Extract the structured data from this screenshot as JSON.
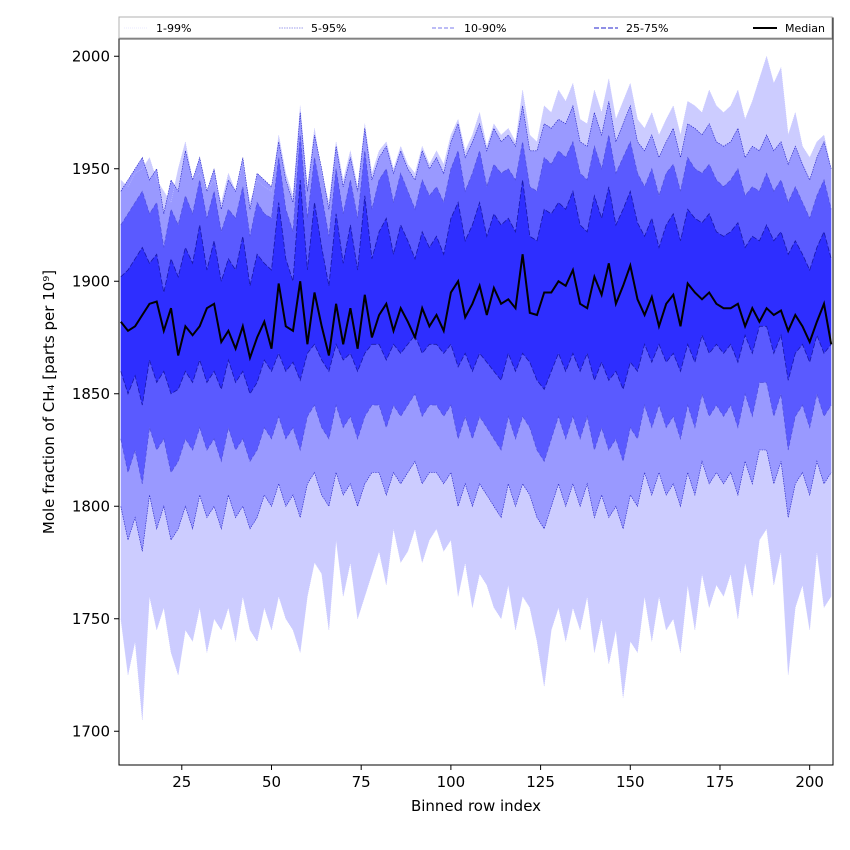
{
  "chart_data": {
    "type": "area",
    "title": "",
    "xlabel": "Binned row index",
    "ylabel": "Mole fraction of CH₄ [parts per 10⁹]",
    "xlim": [
      7.5,
      206.5
    ],
    "ylim": [
      1685,
      2017
    ],
    "xticks": [
      25,
      50,
      75,
      100,
      125,
      150,
      175,
      200
    ],
    "yticks": [
      1700,
      1750,
      1800,
      1850,
      1900,
      1950,
      2000
    ],
    "grid": false,
    "legend_position": "top",
    "legend": [
      {
        "label": "1-99%",
        "color": "#d4d4ff",
        "dash": "1,1",
        "width": 0.6
      },
      {
        "label": "5-95%",
        "color": "#3a3ad8",
        "dash": "1.5,1",
        "width": 0.6
      },
      {
        "label": "10-90%",
        "color": "#7878ee",
        "dash": "4,2",
        "width": 1
      },
      {
        "label": "25-75%",
        "color": "#2222cc",
        "dash": "5,2",
        "width": 1
      },
      {
        "label": "Median",
        "color": "#000000",
        "dash": "",
        "width": 2
      }
    ],
    "x": [
      8,
      10,
      12,
      14,
      16,
      18,
      20,
      22,
      24,
      26,
      28,
      30,
      32,
      34,
      36,
      38,
      40,
      42,
      44,
      46,
      48,
      50,
      52,
      54,
      56,
      58,
      60,
      62,
      64,
      66,
      68,
      70,
      72,
      74,
      76,
      78,
      80,
      82,
      84,
      86,
      88,
      90,
      92,
      94,
      96,
      98,
      100,
      102,
      104,
      106,
      108,
      110,
      112,
      114,
      116,
      118,
      120,
      122,
      124,
      126,
      128,
      130,
      132,
      134,
      136,
      138,
      140,
      142,
      144,
      146,
      148,
      150,
      152,
      154,
      156,
      158,
      160,
      162,
      164,
      166,
      168,
      170,
      172,
      174,
      176,
      178,
      180,
      182,
      184,
      186,
      188,
      190,
      192,
      194,
      196,
      198,
      200,
      202,
      204,
      206
    ],
    "series": [
      {
        "name": "1-99% lower",
        "values": [
          1750,
          1725,
          1740,
          1705,
          1760,
          1745,
          1755,
          1735,
          1725,
          1745,
          1740,
          1755,
          1735,
          1750,
          1745,
          1755,
          1740,
          1760,
          1745,
          1740,
          1755,
          1745,
          1760,
          1750,
          1745,
          1735,
          1760,
          1775,
          1770,
          1745,
          1785,
          1760,
          1775,
          1750,
          1760,
          1770,
          1780,
          1765,
          1790,
          1775,
          1780,
          1790,
          1775,
          1785,
          1790,
          1780,
          1785,
          1760,
          1775,
          1755,
          1770,
          1765,
          1755,
          1750,
          1765,
          1745,
          1760,
          1755,
          1740,
          1720,
          1745,
          1755,
          1740,
          1755,
          1745,
          1760,
          1735,
          1750,
          1730,
          1745,
          1715,
          1740,
          1735,
          1760,
          1740,
          1760,
          1745,
          1750,
          1735,
          1765,
          1745,
          1770,
          1755,
          1765,
          1760,
          1770,
          1750,
          1775,
          1760,
          1785,
          1790,
          1765,
          1780,
          1725,
          1755,
          1765,
          1745,
          1780,
          1755,
          1760
        ]
      },
      {
        "name": "5-95% lower",
        "values": [
          1800,
          1785,
          1795,
          1780,
          1805,
          1790,
          1800,
          1785,
          1790,
          1800,
          1790,
          1805,
          1795,
          1800,
          1790,
          1805,
          1795,
          1800,
          1790,
          1795,
          1805,
          1800,
          1810,
          1800,
          1805,
          1795,
          1810,
          1815,
          1805,
          1800,
          1815,
          1805,
          1810,
          1800,
          1810,
          1815,
          1815,
          1805,
          1815,
          1810,
          1815,
          1820,
          1810,
          1815,
          1815,
          1810,
          1815,
          1800,
          1810,
          1800,
          1810,
          1805,
          1800,
          1795,
          1810,
          1800,
          1810,
          1805,
          1795,
          1790,
          1800,
          1810,
          1800,
          1810,
          1800,
          1810,
          1795,
          1805,
          1795,
          1800,
          1790,
          1805,
          1800,
          1815,
          1805,
          1815,
          1805,
          1810,
          1800,
          1815,
          1805,
          1820,
          1810,
          1815,
          1810,
          1815,
          1805,
          1820,
          1810,
          1825,
          1825,
          1810,
          1820,
          1795,
          1810,
          1815,
          1805,
          1820,
          1810,
          1815
        ]
      },
      {
        "name": "10-90% lower",
        "values": [
          1830,
          1815,
          1825,
          1810,
          1835,
          1825,
          1830,
          1815,
          1820,
          1830,
          1825,
          1835,
          1825,
          1830,
          1820,
          1835,
          1825,
          1830,
          1820,
          1825,
          1835,
          1830,
          1840,
          1830,
          1835,
          1825,
          1840,
          1845,
          1835,
          1830,
          1845,
          1835,
          1840,
          1830,
          1840,
          1845,
          1845,
          1835,
          1845,
          1840,
          1845,
          1850,
          1840,
          1845,
          1845,
          1840,
          1845,
          1830,
          1840,
          1830,
          1840,
          1835,
          1830,
          1825,
          1840,
          1830,
          1840,
          1835,
          1825,
          1820,
          1830,
          1840,
          1830,
          1840,
          1830,
          1840,
          1825,
          1835,
          1825,
          1830,
          1820,
          1835,
          1830,
          1845,
          1835,
          1845,
          1835,
          1840,
          1830,
          1845,
          1835,
          1850,
          1840,
          1845,
          1840,
          1845,
          1835,
          1850,
          1840,
          1855,
          1855,
          1840,
          1850,
          1825,
          1840,
          1845,
          1835,
          1850,
          1840,
          1845
        ]
      },
      {
        "name": "25-75% lower",
        "values": [
          1860,
          1850,
          1858,
          1845,
          1865,
          1855,
          1860,
          1850,
          1852,
          1860,
          1855,
          1865,
          1855,
          1860,
          1852,
          1865,
          1855,
          1860,
          1850,
          1855,
          1865,
          1860,
          1868,
          1860,
          1864,
          1856,
          1868,
          1872,
          1865,
          1860,
          1872,
          1865,
          1868,
          1860,
          1868,
          1872,
          1872,
          1865,
          1872,
          1868,
          1872,
          1876,
          1868,
          1872,
          1872,
          1868,
          1872,
          1862,
          1868,
          1860,
          1868,
          1864,
          1860,
          1856,
          1868,
          1860,
          1868,
          1864,
          1856,
          1852,
          1860,
          1868,
          1860,
          1868,
          1860,
          1868,
          1856,
          1864,
          1856,
          1860,
          1852,
          1864,
          1860,
          1872,
          1864,
          1872,
          1864,
          1868,
          1860,
          1872,
          1864,
          1876,
          1868,
          1872,
          1868,
          1872,
          1864,
          1876,
          1868,
          1880,
          1880,
          1868,
          1876,
          1856,
          1868,
          1872,
          1864,
          1876,
          1868,
          1872
        ]
      },
      {
        "name": "Median",
        "values": [
          1882,
          1878,
          1880,
          1885,
          1890,
          1891,
          1878,
          1888,
          1867,
          1880,
          1876,
          1880,
          1888,
          1890,
          1873,
          1878,
          1870,
          1880,
          1866,
          1875,
          1882,
          1870,
          1899,
          1880,
          1878,
          1900,
          1872,
          1895,
          1880,
          1867,
          1890,
          1872,
          1888,
          1870,
          1894,
          1875,
          1885,
          1890,
          1878,
          1888,
          1882,
          1875,
          1888,
          1880,
          1885,
          1878,
          1895,
          1900,
          1884,
          1890,
          1898,
          1885,
          1897,
          1890,
          1892,
          1888,
          1912,
          1886,
          1885,
          1895,
          1895,
          1900,
          1898,
          1905,
          1890,
          1888,
          1902,
          1894,
          1908,
          1890,
          1898,
          1907,
          1892,
          1885,
          1893,
          1880,
          1890,
          1894,
          1880,
          1899,
          1895,
          1892,
          1895,
          1890,
          1888,
          1888,
          1890,
          1880,
          1888,
          1882,
          1888,
          1885,
          1887,
          1878,
          1885,
          1880,
          1873,
          1882,
          1890,
          1872
        ]
      },
      {
        "name": "25-75% upper",
        "values": [
          1902,
          1905,
          1910,
          1915,
          1908,
          1912,
          1895,
          1910,
          1902,
          1915,
          1908,
          1925,
          1905,
          1918,
          1900,
          1910,
          1905,
          1920,
          1898,
          1912,
          1908,
          1905,
          1935,
          1910,
          1900,
          1945,
          1905,
          1935,
          1915,
          1898,
          1930,
          1908,
          1925,
          1905,
          1938,
          1910,
          1922,
          1928,
          1912,
          1925,
          1918,
          1910,
          1922,
          1915,
          1920,
          1912,
          1928,
          1935,
          1918,
          1925,
          1935,
          1920,
          1930,
          1925,
          1928,
          1922,
          1945,
          1920,
          1918,
          1932,
          1930,
          1935,
          1932,
          1940,
          1925,
          1922,
          1938,
          1928,
          1942,
          1925,
          1932,
          1940,
          1926,
          1920,
          1928,
          1915,
          1925,
          1930,
          1918,
          1932,
          1928,
          1926,
          1930,
          1922,
          1920,
          1922,
          1926,
          1915,
          1920,
          1918,
          1925,
          1918,
          1922,
          1912,
          1918,
          1912,
          1905,
          1915,
          1922,
          1910
        ]
      },
      {
        "name": "10-90% upper",
        "values": [
          1925,
          1930,
          1935,
          1940,
          1930,
          1935,
          1915,
          1932,
          1925,
          1938,
          1930,
          1945,
          1928,
          1940,
          1922,
          1932,
          1928,
          1942,
          1920,
          1935,
          1930,
          1928,
          1955,
          1932,
          1922,
          1965,
          1928,
          1955,
          1938,
          1920,
          1950,
          1930,
          1945,
          1928,
          1958,
          1932,
          1945,
          1950,
          1935,
          1948,
          1940,
          1932,
          1945,
          1938,
          1942,
          1935,
          1950,
          1958,
          1940,
          1948,
          1958,
          1942,
          1952,
          1948,
          1950,
          1945,
          1962,
          1942,
          1940,
          1955,
          1952,
          1958,
          1955,
          1962,
          1948,
          1945,
          1960,
          1950,
          1965,
          1948,
          1955,
          1962,
          1948,
          1942,
          1950,
          1938,
          1948,
          1952,
          1940,
          1955,
          1950,
          1948,
          1952,
          1945,
          1942,
          1945,
          1950,
          1938,
          1942,
          1940,
          1948,
          1940,
          1945,
          1935,
          1942,
          1935,
          1928,
          1938,
          1945,
          1932
        ]
      },
      {
        "name": "5-95% upper",
        "values": [
          1940,
          1945,
          1950,
          1955,
          1945,
          1950,
          1930,
          1945,
          1940,
          1958,
          1945,
          1955,
          1940,
          1950,
          1932,
          1945,
          1940,
          1955,
          1932,
          1948,
          1945,
          1942,
          1962,
          1945,
          1935,
          1975,
          1940,
          1965,
          1950,
          1932,
          1960,
          1942,
          1955,
          1940,
          1968,
          1945,
          1955,
          1960,
          1948,
          1958,
          1950,
          1945,
          1958,
          1950,
          1955,
          1948,
          1962,
          1970,
          1955,
          1962,
          1970,
          1958,
          1968,
          1962,
          1965,
          1960,
          1978,
          1958,
          1958,
          1970,
          1968,
          1972,
          1970,
          1978,
          1962,
          1960,
          1975,
          1965,
          1980,
          1962,
          1970,
          1978,
          1962,
          1958,
          1965,
          1955,
          1962,
          1968,
          1955,
          1970,
          1968,
          1965,
          1970,
          1962,
          1960,
          1962,
          1968,
          1955,
          1960,
          1958,
          1965,
          1958,
          1962,
          1952,
          1960,
          1952,
          1945,
          1955,
          1962,
          1950
        ]
      },
      {
        "name": "1-99% upper",
        "values": [
          1945,
          1942,
          1948,
          1950,
          1955,
          1945,
          1940,
          1935,
          1950,
          1962,
          1945,
          1948,
          1940,
          1945,
          1935,
          1948,
          1940,
          1952,
          1935,
          1945,
          1942,
          1940,
          1965,
          1948,
          1938,
          1978,
          1942,
          1968,
          1948,
          1935,
          1962,
          1945,
          1958,
          1942,
          1970,
          1948,
          1958,
          1962,
          1950,
          1960,
          1952,
          1948,
          1960,
          1952,
          1958,
          1952,
          1965,
          1972,
          1958,
          1965,
          1975,
          1960,
          1970,
          1965,
          1968,
          1962,
          1985,
          1965,
          1962,
          1978,
          1975,
          1985,
          1980,
          1988,
          1972,
          1970,
          1985,
          1975,
          1990,
          1972,
          1980,
          1988,
          1972,
          1968,
          1975,
          1965,
          1972,
          1978,
          1965,
          1980,
          1978,
          1975,
          1985,
          1978,
          1975,
          1978,
          1985,
          1972,
          1980,
          1990,
          2000,
          1988,
          1995,
          1965,
          1975,
          1960,
          1955,
          1962,
          1965,
          1950
        ]
      }
    ]
  }
}
